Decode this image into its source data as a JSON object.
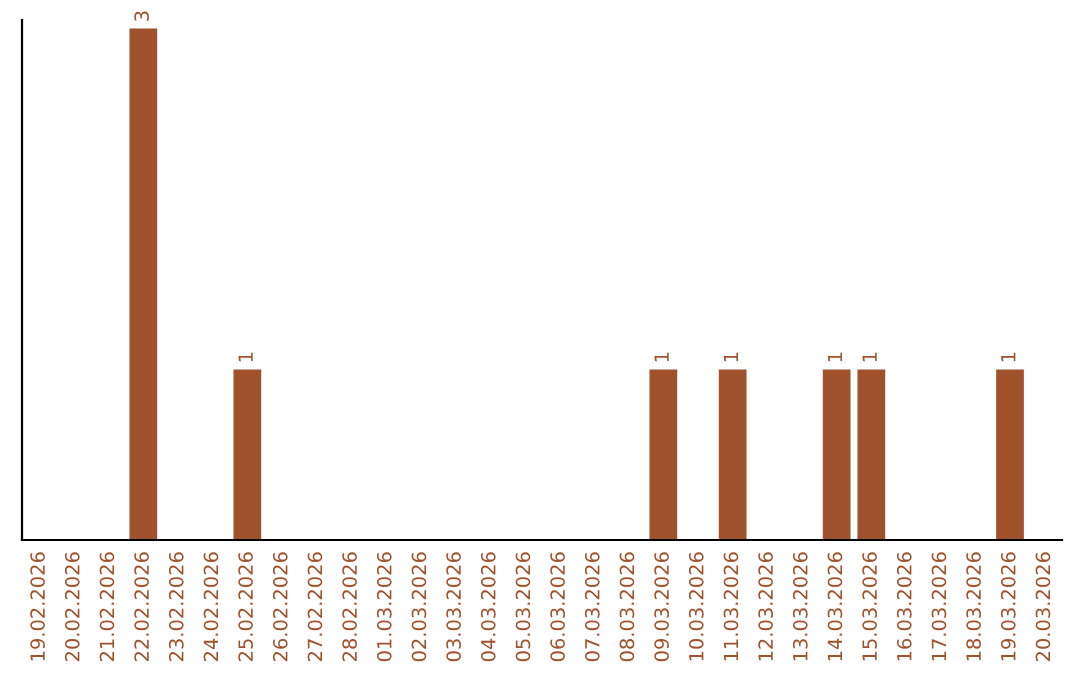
{
  "chart_data": {
    "type": "bar",
    "categories": [
      "19.02.2026",
      "20.02.2026",
      "21.02.2026",
      "22.02.2026",
      "23.02.2026",
      "24.02.2026",
      "25.02.2026",
      "26.02.2026",
      "27.02.2026",
      "28.02.2026",
      "01.03.2026",
      "02.03.2026",
      "03.03.2026",
      "04.03.2026",
      "05.03.2026",
      "06.03.2026",
      "07.03.2026",
      "08.03.2026",
      "09.03.2026",
      "10.03.2026",
      "11.03.2026",
      "12.03.2026",
      "13.03.2026",
      "14.03.2026",
      "15.03.2026",
      "16.03.2026",
      "17.03.2026",
      "18.03.2026",
      "19.03.2026",
      "20.03.2026"
    ],
    "values": [
      0,
      0,
      0,
      3,
      0,
      0,
      1,
      0,
      0,
      0,
      0,
      0,
      0,
      0,
      0,
      0,
      0,
      0,
      1,
      0,
      1,
      0,
      0,
      1,
      1,
      0,
      0,
      0,
      1,
      0
    ],
    "color": "#a0522d",
    "ylim": [
      0,
      3.05
    ],
    "value_labels": [
      null,
      null,
      null,
      "3",
      null,
      null,
      "1",
      null,
      null,
      null,
      null,
      null,
      null,
      null,
      null,
      null,
      null,
      null,
      "1",
      null,
      "1",
      null,
      null,
      "1",
      "1",
      null,
      null,
      null,
      "1",
      null
    ],
    "tick_labels": "x",
    "grid": false,
    "legend": false
  }
}
